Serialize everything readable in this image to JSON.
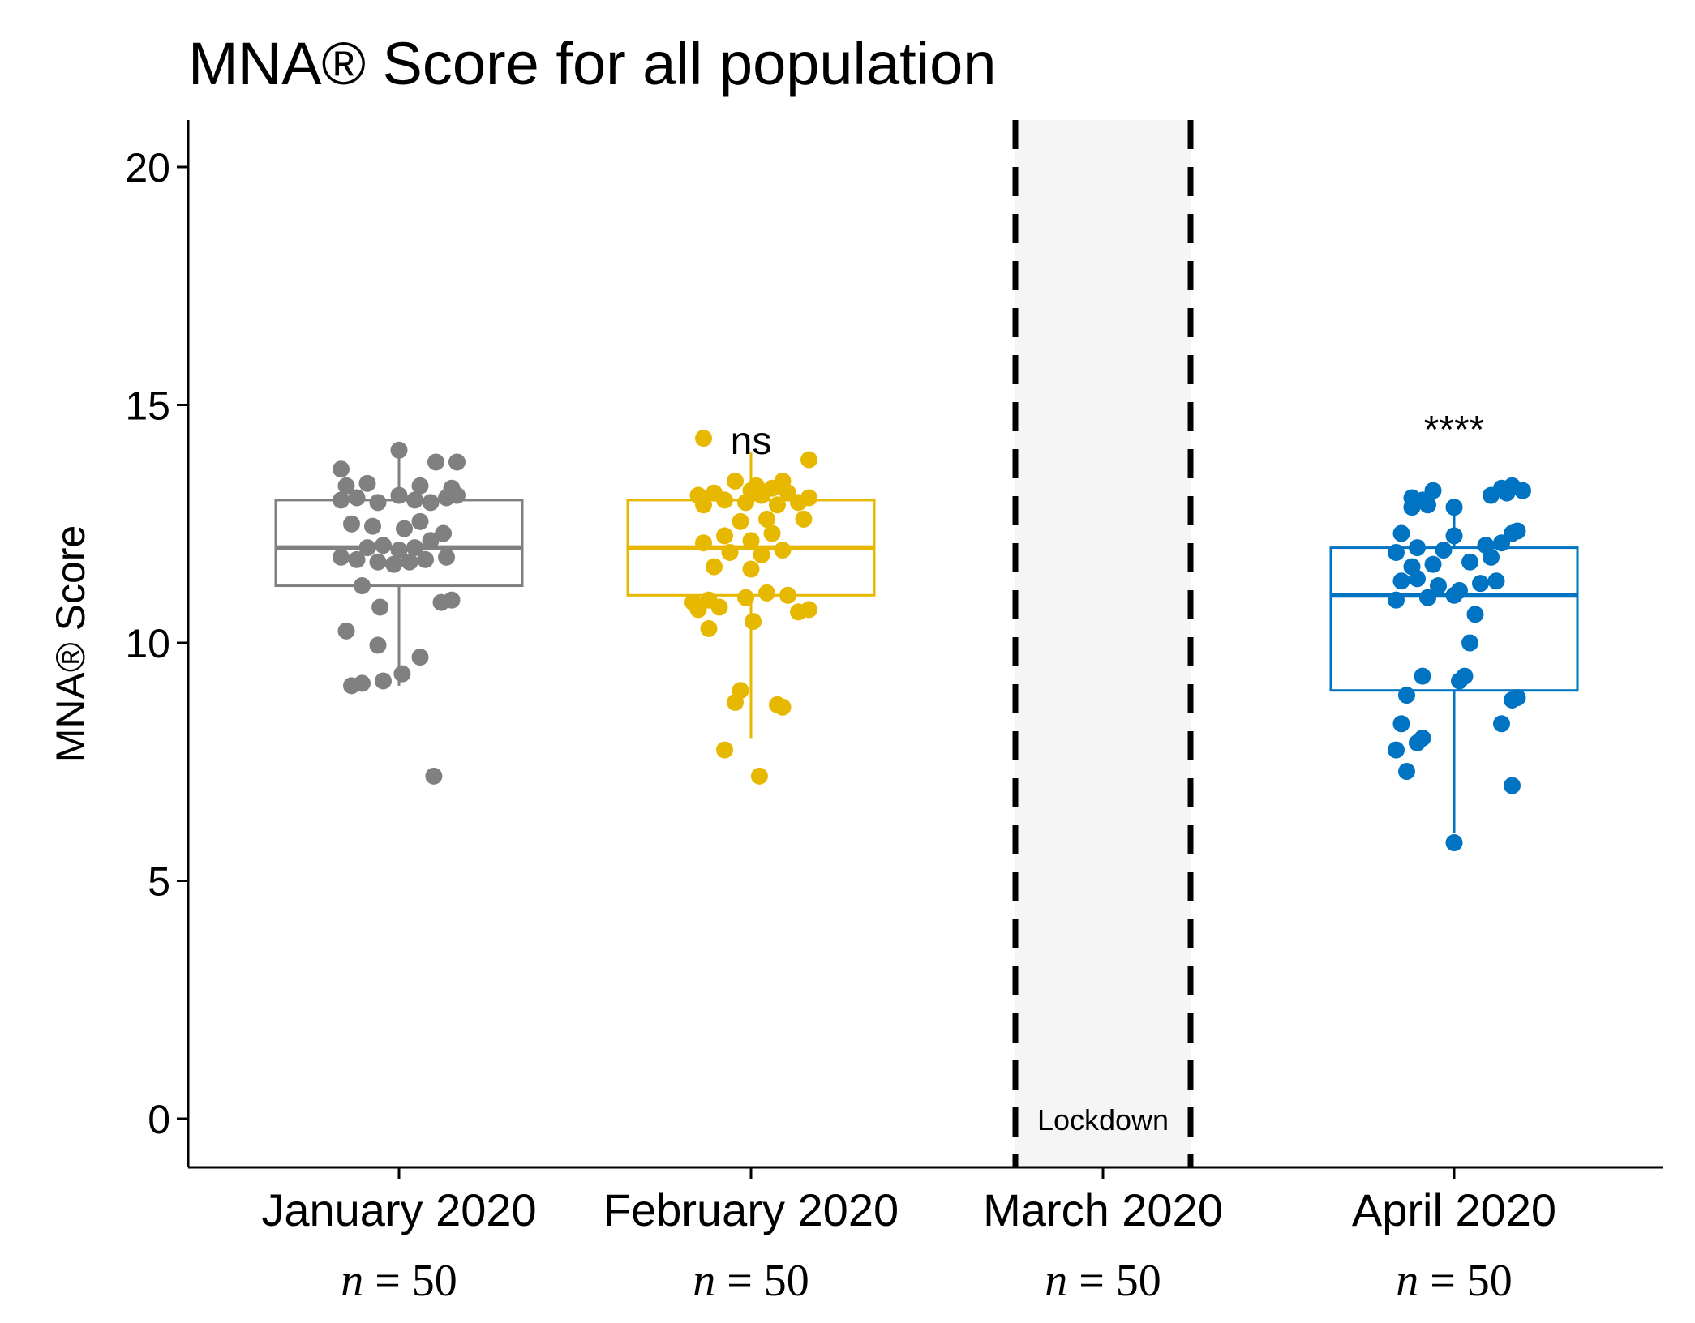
{
  "chart_data": {
    "type": "boxplot-with-jitter",
    "title": "MNA® Score for all population",
    "xlabel": "",
    "ylabel": "MNA® Score",
    "ylim": [
      -1,
      21
    ],
    "yticks": [
      0,
      5,
      10,
      15,
      20
    ],
    "ytick_labels": [
      "0",
      "5",
      "10",
      "15",
      "20"
    ],
    "categories": [
      "January 2020",
      "February 2020",
      "March 2020",
      "April 2020"
    ],
    "n_labels": [
      {
        "var": "n",
        "eq": " = 50"
      },
      {
        "var": "n",
        "eq": " = 50"
      },
      {
        "var": "n",
        "eq": " = 50"
      },
      {
        "var": "n",
        "eq": " = 50"
      }
    ],
    "shaded_region": {
      "category": "March 2020",
      "label": "Lockdown",
      "color": "#f5f5f5",
      "line_style": "dashed"
    },
    "series": [
      {
        "name": "January 2020",
        "color": "#808080",
        "annotation": "",
        "box": {
          "min": 9.1,
          "q1": 11.2,
          "median": 12.0,
          "q3": 13.0,
          "max": 13.9
        },
        "points": [
          [
            0.33,
            7.2
          ],
          [
            -0.45,
            9.1
          ],
          [
            -0.35,
            9.15
          ],
          [
            -0.15,
            9.2
          ],
          [
            0.03,
            9.35
          ],
          [
            0.2,
            9.7
          ],
          [
            -0.2,
            9.95
          ],
          [
            -0.5,
            10.25
          ],
          [
            -0.18,
            10.75
          ],
          [
            0.4,
            10.85
          ],
          [
            0.5,
            10.9
          ],
          [
            -0.35,
            11.2
          ],
          [
            -0.55,
            11.8
          ],
          [
            -0.4,
            11.75
          ],
          [
            -0.2,
            11.7
          ],
          [
            -0.05,
            11.65
          ],
          [
            0.1,
            11.7
          ],
          [
            0.25,
            11.75
          ],
          [
            0.45,
            11.8
          ],
          [
            -0.3,
            12.0
          ],
          [
            -0.15,
            12.05
          ],
          [
            0.0,
            11.95
          ],
          [
            0.15,
            12.0
          ],
          [
            0.3,
            12.15
          ],
          [
            0.42,
            12.3
          ],
          [
            -0.45,
            12.5
          ],
          [
            -0.25,
            12.45
          ],
          [
            0.05,
            12.4
          ],
          [
            0.2,
            12.55
          ],
          [
            -0.55,
            13.0
          ],
          [
            -0.4,
            13.05
          ],
          [
            -0.2,
            12.95
          ],
          [
            0.0,
            13.1
          ],
          [
            0.15,
            13.0
          ],
          [
            0.3,
            12.95
          ],
          [
            0.45,
            13.05
          ],
          [
            0.55,
            13.1
          ],
          [
            -0.5,
            13.3
          ],
          [
            -0.3,
            13.35
          ],
          [
            0.2,
            13.3
          ],
          [
            0.5,
            13.25
          ],
          [
            -0.55,
            13.65
          ],
          [
            0.0,
            14.05
          ],
          [
            0.35,
            13.8
          ],
          [
            0.55,
            13.8
          ]
        ]
      },
      {
        "name": "February 2020",
        "color": "#e7b800",
        "annotation": "ns",
        "box": {
          "min": 8.0,
          "q1": 11.0,
          "median": 12.0,
          "q3": 13.0,
          "max": 14.0
        },
        "points": [
          [
            0.08,
            7.2
          ],
          [
            -0.25,
            7.75
          ],
          [
            -0.15,
            8.75
          ],
          [
            0.3,
            8.65
          ],
          [
            0.25,
            8.7
          ],
          [
            -0.1,
            9.0
          ],
          [
            -0.4,
            10.3
          ],
          [
            0.02,
            10.45
          ],
          [
            -0.5,
            10.7
          ],
          [
            -0.3,
            10.75
          ],
          [
            0.45,
            10.65
          ],
          [
            0.55,
            10.7
          ],
          [
            -0.55,
            10.85
          ],
          [
            -0.4,
            10.9
          ],
          [
            -0.05,
            10.95
          ],
          [
            0.15,
            11.05
          ],
          [
            0.35,
            11.0
          ],
          [
            -0.35,
            11.6
          ],
          [
            0.0,
            11.55
          ],
          [
            -0.2,
            11.9
          ],
          [
            0.1,
            11.85
          ],
          [
            0.3,
            11.95
          ],
          [
            -0.45,
            12.1
          ],
          [
            -0.25,
            12.25
          ],
          [
            0.0,
            12.15
          ],
          [
            0.2,
            12.3
          ],
          [
            -0.1,
            12.55
          ],
          [
            0.15,
            12.6
          ],
          [
            0.5,
            12.6
          ],
          [
            -0.45,
            12.9
          ],
          [
            -0.25,
            13.0
          ],
          [
            -0.05,
            12.95
          ],
          [
            0.1,
            13.1
          ],
          [
            0.25,
            12.9
          ],
          [
            0.45,
            12.95
          ],
          [
            -0.5,
            13.1
          ],
          [
            -0.35,
            13.15
          ],
          [
            0.0,
            13.2
          ],
          [
            0.2,
            13.25
          ],
          [
            0.35,
            13.15
          ],
          [
            0.55,
            13.05
          ],
          [
            -0.15,
            13.4
          ],
          [
            0.05,
            13.3
          ],
          [
            0.3,
            13.4
          ],
          [
            0.55,
            13.85
          ],
          [
            -0.45,
            14.3
          ]
        ]
      },
      {
        "name": "April 2020",
        "color": "#0073c2",
        "annotation": "****",
        "box": {
          "min": 6.0,
          "q1": 9.0,
          "median": 11.0,
          "q3": 12.0,
          "max": 13.0
        },
        "points": [
          [
            0.0,
            5.8
          ],
          [
            0.55,
            7.0
          ],
          [
            -0.45,
            7.3
          ],
          [
            -0.55,
            7.75
          ],
          [
            -0.35,
            7.9
          ],
          [
            -0.3,
            8.0
          ],
          [
            -0.5,
            8.3
          ],
          [
            0.45,
            8.3
          ],
          [
            -0.45,
            8.9
          ],
          [
            0.05,
            9.2
          ],
          [
            0.55,
            8.8
          ],
          [
            0.6,
            8.85
          ],
          [
            -0.3,
            9.3
          ],
          [
            0.1,
            9.3
          ],
          [
            0.15,
            10.0
          ],
          [
            0.2,
            10.6
          ],
          [
            -0.55,
            10.9
          ],
          [
            -0.25,
            10.95
          ],
          [
            0.0,
            11.0
          ],
          [
            -0.5,
            11.3
          ],
          [
            -0.35,
            11.35
          ],
          [
            -0.15,
            11.2
          ],
          [
            0.05,
            11.1
          ],
          [
            0.25,
            11.25
          ],
          [
            0.4,
            11.3
          ],
          [
            -0.4,
            11.6
          ],
          [
            -0.2,
            11.65
          ],
          [
            0.15,
            11.7
          ],
          [
            0.35,
            11.8
          ],
          [
            -0.55,
            11.9
          ],
          [
            -0.35,
            12.0
          ],
          [
            -0.1,
            11.95
          ],
          [
            0.3,
            12.05
          ],
          [
            0.45,
            12.1
          ],
          [
            -0.5,
            12.3
          ],
          [
            0.0,
            12.25
          ],
          [
            0.55,
            12.3
          ],
          [
            0.6,
            12.35
          ],
          [
            -0.4,
            12.85
          ],
          [
            -0.25,
            12.9
          ],
          [
            0.0,
            12.85
          ],
          [
            -0.3,
            13.0
          ],
          [
            0.35,
            13.1
          ],
          [
            0.5,
            13.15
          ],
          [
            -0.2,
            13.2
          ],
          [
            0.45,
            13.25
          ],
          [
            0.55,
            13.3
          ],
          [
            0.65,
            13.2
          ],
          [
            -0.4,
            13.05
          ]
        ]
      }
    ]
  }
}
